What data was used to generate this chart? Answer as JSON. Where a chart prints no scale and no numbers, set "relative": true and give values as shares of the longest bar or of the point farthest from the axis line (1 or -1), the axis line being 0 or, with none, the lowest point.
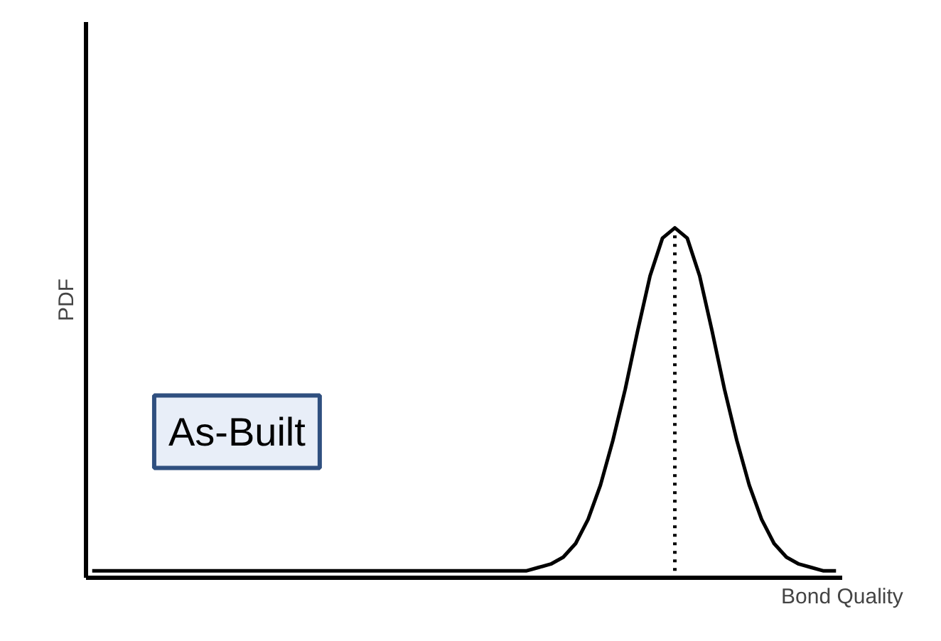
{
  "chart_data": {
    "type": "line",
    "relative": true,
    "xlabel": "Bond Quality",
    "ylabel": "PDF",
    "annotations": [
      "As-Built"
    ],
    "line_style": "solid",
    "categories": [
      null,
      null,
      null,
      null,
      null,
      null,
      null,
      null,
      null,
      null,
      null,
      null,
      null,
      null,
      null,
      null,
      null,
      null,
      null,
      null,
      null,
      null,
      null,
      null,
      null,
      null,
      null,
      null,
      null,
      null,
      null,
      null,
      null,
      null,
      null,
      null,
      null,
      null,
      null,
      null,
      null,
      null,
      null,
      null,
      null,
      null,
      null,
      null,
      null,
      null,
      null,
      null,
      null,
      null,
      null,
      null,
      null,
      null,
      null,
      null,
      null
    ],
    "series": [
      {
        "color": "#000000",
        "values": [
          0,
          0,
          0,
          0,
          0,
          0,
          0,
          0,
          0,
          0,
          0,
          0,
          0,
          0,
          0,
          0,
          0,
          0,
          0,
          0,
          0,
          0,
          0,
          0,
          0,
          0,
          0,
          0,
          0,
          0,
          0,
          0,
          0,
          0,
          0,
          0,
          0.01,
          0.02,
          0.04,
          0.08,
          0.15,
          0.25,
          0.38,
          0.53,
          0.7,
          0.86,
          0.97,
          1,
          0.97,
          0.86,
          0.7,
          0.53,
          0.38,
          0.25,
          0.15,
          0.08,
          0.04,
          0.02,
          0.01,
          0,
          0
        ]
      }
    ]
  }
}
